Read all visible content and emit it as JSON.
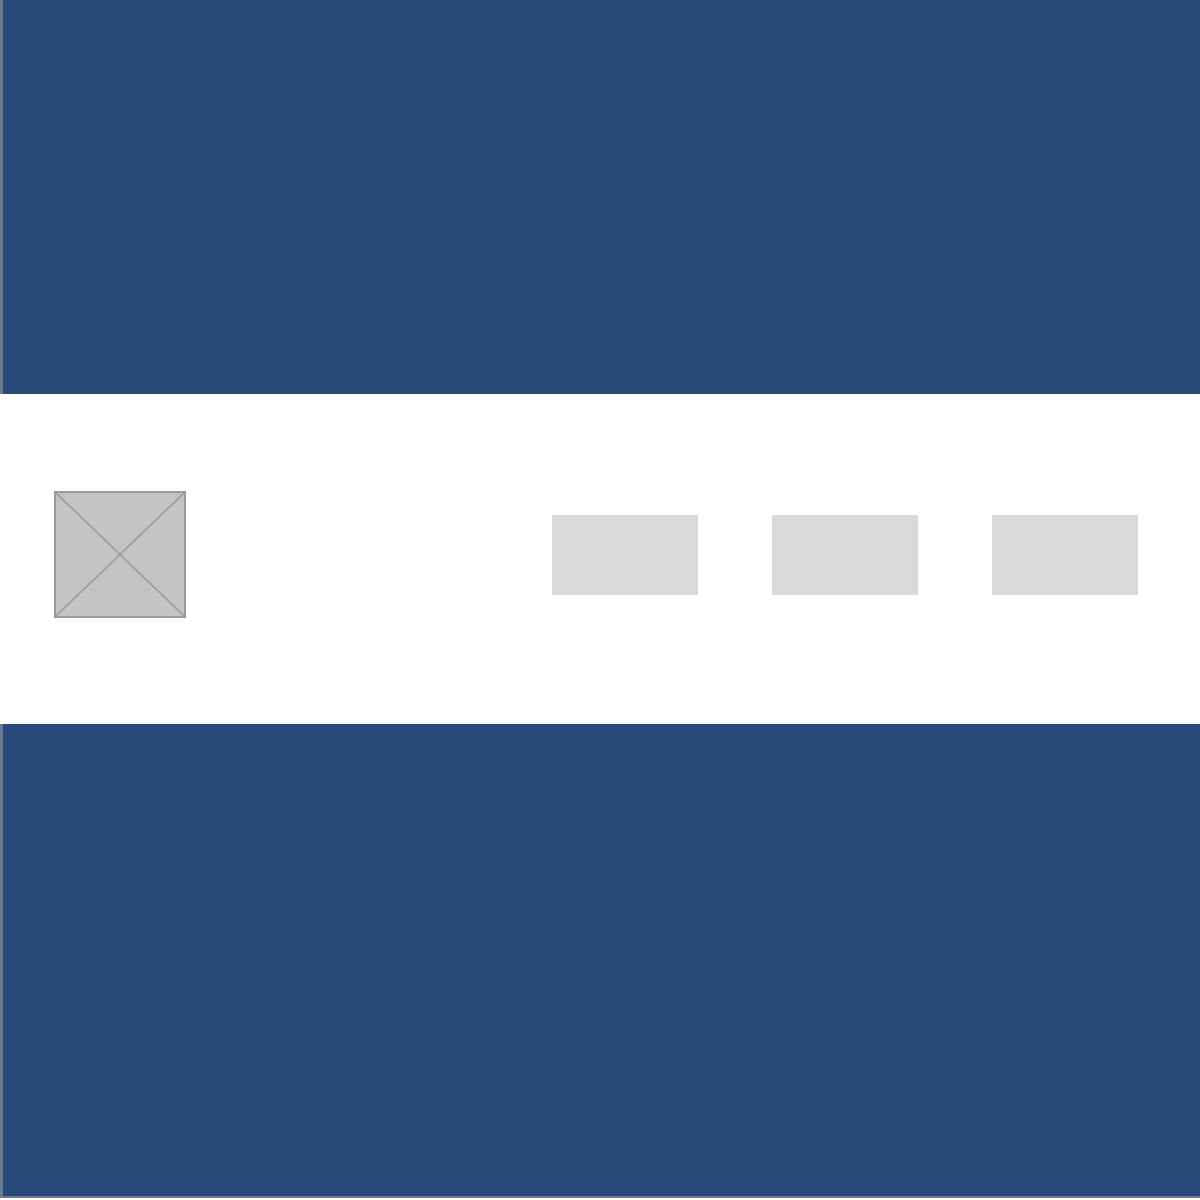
{
  "colors": {
    "band": "#26497a",
    "nav_background": "#ffffff",
    "image_placeholder": "#c4c4c4",
    "image_placeholder_lines": "#9a9a9a",
    "nav_placeholder": "#d9d9d9"
  },
  "icons": {
    "logo": "image-placeholder-icon"
  },
  "nav": {
    "items": [
      {
        "label": ""
      },
      {
        "label": ""
      },
      {
        "label": ""
      }
    ]
  }
}
